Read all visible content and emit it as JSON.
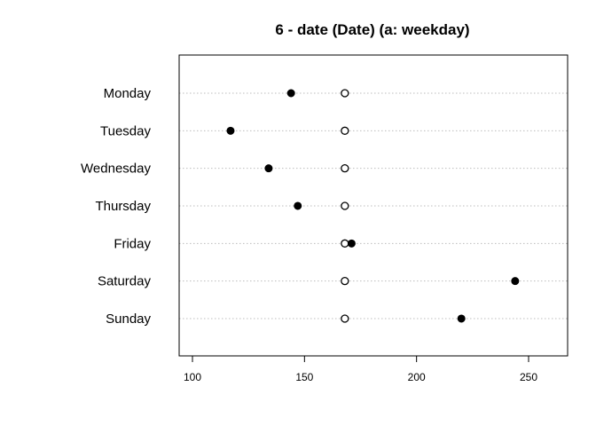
{
  "chart_data": {
    "type": "scatter",
    "title": "6 - date (Date) (a: weekday)",
    "xlabel": "",
    "ylabel": "",
    "categories": [
      "Monday",
      "Tuesday",
      "Wednesday",
      "Thursday",
      "Friday",
      "Saturday",
      "Sunday"
    ],
    "series": [
      {
        "style": "filled",
        "color": "#000000",
        "values": [
          144,
          117,
          134,
          147,
          171,
          244,
          220
        ]
      },
      {
        "style": "open",
        "color": "#000000",
        "values": [
          168,
          168,
          168,
          168,
          168,
          168,
          168
        ]
      }
    ],
    "xlim": [
      94,
      267
    ],
    "xticks": [
      100,
      150,
      200,
      250
    ],
    "grid": "horizontal dotted guide lines"
  }
}
